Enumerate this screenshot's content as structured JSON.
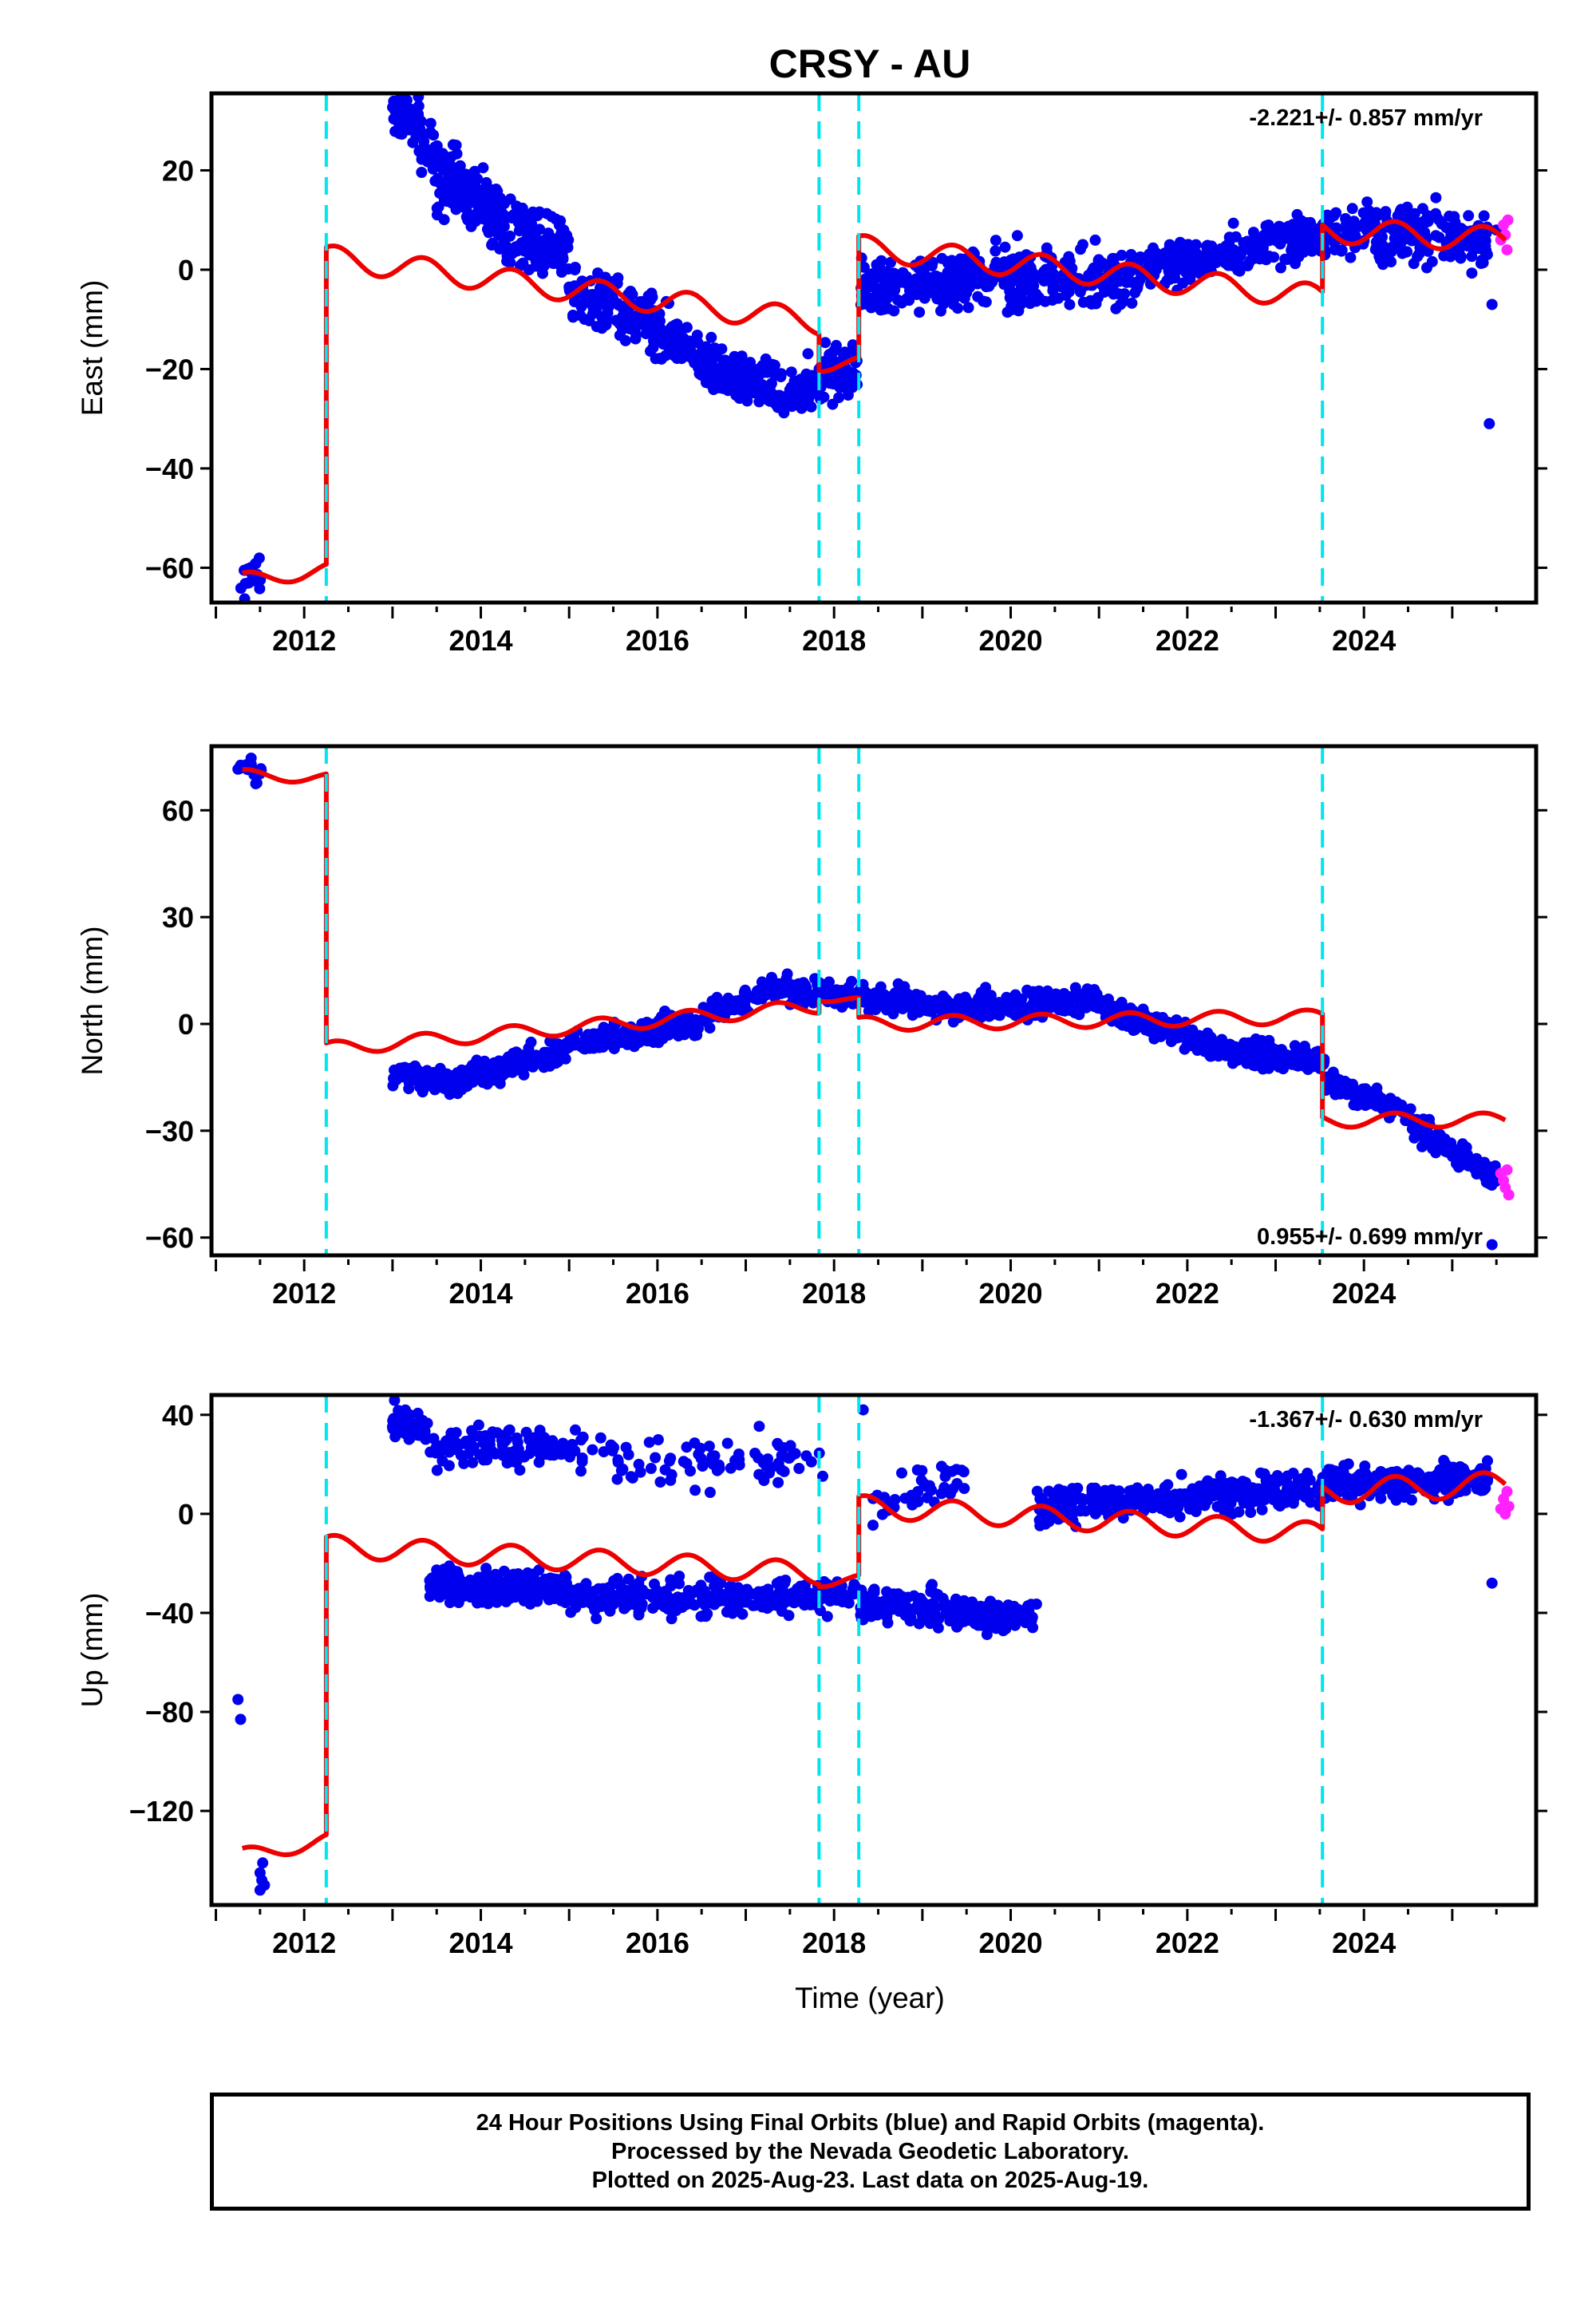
{
  "figure": {
    "title": "CRSY - AU",
    "xlabel": "Time (year)"
  },
  "colors": {
    "final_orbits": "#0000ee",
    "rapid_orbits": "#ff22ff",
    "model": "#ee0000",
    "offsets": "#00e5ee",
    "frame": "#000000"
  },
  "footer": {
    "line1": "24 Hour Positions Using Final Orbits (blue) and Rapid Orbits (magenta).",
    "line2": "Processed by the Nevada Geodetic Laboratory.",
    "line3": "Plotted on 2025-Aug-23. Last data on 2025-Aug-19."
  },
  "chart_data": [
    {
      "type": "scatter",
      "ylabel": "East (mm)",
      "rate": "-2.221+/- 0.857 mm/yr",
      "rate_position": "top-right",
      "xlim": [
        2010.95,
        2025.95
      ],
      "ylim": [
        -67,
        35.5
      ],
      "yticks": [
        20,
        0,
        -20,
        -40,
        -60
      ],
      "ytick_labels": [
        "20",
        "0",
        "−20",
        "−40",
        "−60"
      ],
      "xticks": [
        2012,
        2014,
        2016,
        2018,
        2020,
        2022,
        2024
      ],
      "offsets": [
        2012.25,
        2017.83,
        2018.28,
        2023.53
      ],
      "final_clusters": [
        {
          "x": [
            2011.25,
            2011.55
          ],
          "y": [
            -64,
            -60
          ],
          "spread": 3,
          "n": 20
        },
        {
          "x": [
            2013.0,
            2013.3
          ],
          "y": [
            31,
            30
          ],
          "spread": 3,
          "n": 50
        },
        {
          "x": [
            2013.3,
            2014.2
          ],
          "y": [
            26,
            10
          ],
          "spread": 4,
          "n": 140
        },
        {
          "x": [
            2013.5,
            2015.0
          ],
          "y": [
            17,
            6
          ],
          "spread": 4,
          "n": 140
        },
        {
          "x": [
            2014.2,
            2015.0
          ],
          "y": [
            5,
            3
          ],
          "spread": 3,
          "n": 60
        },
        {
          "x": [
            2015.0,
            2015.7
          ],
          "y": [
            -5,
            -9
          ],
          "spread": 4,
          "n": 100
        },
        {
          "x": [
            2015.7,
            2016.7
          ],
          "y": [
            -9,
            -20
          ],
          "spread": 4,
          "n": 150
        },
        {
          "x": [
            2016.7,
            2017.7
          ],
          "y": [
            -21,
            -25
          ],
          "spread": 3,
          "n": 150
        },
        {
          "x": [
            2017.7,
            2018.28
          ],
          "y": [
            -22,
            -19
          ],
          "spread": 4,
          "n": 80
        },
        {
          "x": [
            2018.3,
            2019.5
          ],
          "y": [
            -4,
            -2
          ],
          "spread": 4,
          "n": 180
        },
        {
          "x": [
            2019.5,
            2021.5
          ],
          "y": [
            -1,
            -2
          ],
          "spread": 4,
          "n": 260
        },
        {
          "x": [
            2021.5,
            2023.55
          ],
          "y": [
            0,
            7
          ],
          "spread": 3,
          "n": 260
        },
        {
          "x": [
            2023.55,
            2025.4
          ],
          "y": [
            8,
            6
          ],
          "spread": 4,
          "n": 240
        }
      ],
      "final_points": [
        [
          2025.42,
          -31
        ],
        [
          2025.45,
          -7
        ],
        [
          2025.5,
          8
        ]
      ],
      "rapid_points": [
        [
          2025.55,
          6
        ],
        [
          2025.58,
          9
        ],
        [
          2025.6,
          7
        ],
        [
          2025.62,
          4
        ],
        [
          2025.63,
          10
        ]
      ],
      "model_segments": [
        {
          "x0": 2011.3,
          "x1": 2012.25,
          "base": [
            -62.5,
            -60.5
          ],
          "amp": 1.5
        },
        {
          "x0": 2012.25,
          "x1": 2017.83,
          "base": [
            2.5,
            -10.5
          ],
          "amp": 2.5
        },
        {
          "x0": 2017.83,
          "x1": 2018.28,
          "base": [
            -19,
            -19
          ],
          "amp": 1.5
        },
        {
          "x0": 2018.28,
          "x1": 2023.53,
          "base": [
            4.5,
            -5.5
          ],
          "amp": 2.5
        },
        {
          "x0": 2023.53,
          "x1": 2025.6,
          "base": [
            8,
            6
          ],
          "amp": 2.5
        }
      ]
    },
    {
      "type": "scatter",
      "ylabel": "North (mm)",
      "rate": "0.955+/- 0.699 mm/yr",
      "rate_position": "bottom-right",
      "xlim": [
        2010.95,
        2025.95
      ],
      "ylim": [
        -65,
        78
      ],
      "yticks": [
        60,
        30,
        0,
        -30,
        -60
      ],
      "ytick_labels": [
        "60",
        "30",
        "0",
        "−30",
        "−60"
      ],
      "xticks": [
        2012,
        2014,
        2016,
        2018,
        2020,
        2022,
        2024
      ],
      "offsets": [
        2012.25,
        2017.83,
        2018.28,
        2023.53
      ],
      "final_clusters": [
        {
          "x": [
            2011.25,
            2011.55
          ],
          "y": [
            73,
            70
          ],
          "spread": 2,
          "n": 20
        },
        {
          "x": [
            2013.0,
            2013.8
          ],
          "y": [
            -14,
            -17
          ],
          "spread": 2.5,
          "n": 100
        },
        {
          "x": [
            2013.8,
            2015.0
          ],
          "y": [
            -15,
            -7
          ],
          "spread": 2.5,
          "n": 150
        },
        {
          "x": [
            2015.0,
            2016.5
          ],
          "y": [
            -5,
            0
          ],
          "spread": 2.5,
          "n": 180
        },
        {
          "x": [
            2016.5,
            2017.5
          ],
          "y": [
            2,
            11
          ],
          "spread": 2.5,
          "n": 140
        },
        {
          "x": [
            2017.5,
            2019.0
          ],
          "y": [
            9,
            6
          ],
          "spread": 2.5,
          "n": 180
        },
        {
          "x": [
            2019.0,
            2021.0
          ],
          "y": [
            4,
            7
          ],
          "spread": 2.5,
          "n": 240
        },
        {
          "x": [
            2021.0,
            2022.5
          ],
          "y": [
            5,
            -8
          ],
          "spread": 2.5,
          "n": 180
        },
        {
          "x": [
            2022.5,
            2023.55
          ],
          "y": [
            -8,
            -10
          ],
          "spread": 2.5,
          "n": 130
        },
        {
          "x": [
            2023.55,
            2024.5
          ],
          "y": [
            -16,
            -25
          ],
          "spread": 2.5,
          "n": 120
        },
        {
          "x": [
            2024.5,
            2025.5
          ],
          "y": [
            -27,
            -44
          ],
          "spread": 2.5,
          "n": 130
        }
      ],
      "final_points": [
        [
          2025.45,
          -62
        ]
      ],
      "rapid_points": [
        [
          2025.55,
          -42
        ],
        [
          2025.58,
          -44
        ],
        [
          2025.6,
          -46
        ],
        [
          2025.62,
          -41
        ],
        [
          2025.64,
          -48
        ]
      ],
      "model_segments": [
        {
          "x0": 2011.3,
          "x1": 2012.25,
          "base": [
            70,
            69
          ],
          "amp": 1.5
        },
        {
          "x0": 2012.25,
          "x1": 2017.83,
          "base": [
            -7,
            5
          ],
          "amp": 2
        },
        {
          "x0": 2017.83,
          "x1": 2018.28,
          "base": [
            8,
            6
          ],
          "amp": 1.5
        },
        {
          "x0": 2018.28,
          "x1": 2023.53,
          "base": [
            0,
            2
          ],
          "amp": 2
        },
        {
          "x0": 2023.53,
          "x1": 2025.6,
          "base": [
            -27,
            -27
          ],
          "amp": 2
        }
      ]
    },
    {
      "type": "scatter",
      "ylabel": "Up (mm)",
      "rate": "-1.367+/- 0.630 mm/yr",
      "rate_position": "top-right",
      "xlim": [
        2010.95,
        2025.95
      ],
      "ylim": [
        -158,
        48
      ],
      "yticks": [
        40,
        0,
        -40,
        -80,
        -120
      ],
      "ytick_labels": [
        "40",
        "0",
        "−40",
        "−80",
        "−120"
      ],
      "xticks": [
        2012,
        2014,
        2016,
        2018,
        2020,
        2022,
        2024
      ],
      "offsets": [
        2012.25,
        2017.83,
        2018.28,
        2023.53
      ],
      "final_clusters": [
        {
          "x": [
            2013.0,
            2013.4
          ],
          "y": [
            38,
            33
          ],
          "spread": 4,
          "n": 60
        },
        {
          "x": [
            2013.4,
            2015.0
          ],
          "y": [
            28,
            26
          ],
          "spread": 6,
          "n": 120
        },
        {
          "x": [
            2015.0,
            2017.9
          ],
          "y": [
            22,
            20
          ],
          "spread": 7,
          "n": 90
        },
        {
          "x": [
            2013.4,
            2015.0
          ],
          "y": [
            -29,
            -30
          ],
          "spread": 5,
          "n": 220
        },
        {
          "x": [
            2015.0,
            2018.3
          ],
          "y": [
            -34,
            -33
          ],
          "spread": 5,
          "n": 330
        },
        {
          "x": [
            2018.3,
            2020.3
          ],
          "y": [
            -36,
            -42
          ],
          "spread": 5,
          "n": 220
        },
        {
          "x": [
            2018.3,
            2019.5
          ],
          "y": [
            4,
            14
          ],
          "spread": 6,
          "n": 40
        },
        {
          "x": [
            2020.3,
            2023.55
          ],
          "y": [
            3,
            10
          ],
          "spread": 5,
          "n": 380
        },
        {
          "x": [
            2023.55,
            2025.4
          ],
          "y": [
            12,
            14
          ],
          "spread": 5,
          "n": 220
        }
      ],
      "final_points": [
        [
          2011.25,
          -75
        ],
        [
          2011.28,
          -83
        ],
        [
          2011.5,
          -145
        ],
        [
          2011.52,
          -148
        ],
        [
          2011.55,
          -150
        ],
        [
          2011.5,
          -152
        ],
        [
          2011.53,
          -141
        ],
        [
          2018.33,
          42
        ],
        [
          2025.45,
          -28
        ]
      ],
      "rapid_points": [
        [
          2025.55,
          2
        ],
        [
          2025.58,
          6
        ],
        [
          2025.6,
          0
        ],
        [
          2025.62,
          9
        ],
        [
          2025.64,
          3
        ]
      ],
      "model_segments": [
        {
          "x0": 2011.3,
          "x1": 2012.25,
          "base": [
            -138,
            -132
          ],
          "amp": 3
        },
        {
          "x0": 2012.25,
          "x1": 2017.83,
          "base": [
            -13,
            -24
          ],
          "amp": 4.5
        },
        {
          "x0": 2017.83,
          "x1": 2018.28,
          "base": [
            -27,
            -27
          ],
          "amp": 2.5
        },
        {
          "x0": 2018.28,
          "x1": 2023.53,
          "base": [
            3,
            -8
          ],
          "amp": 4.5
        },
        {
          "x0": 2023.53,
          "x1": 2025.6,
          "base": [
            9,
            12
          ],
          "amp": 5
        }
      ]
    }
  ]
}
